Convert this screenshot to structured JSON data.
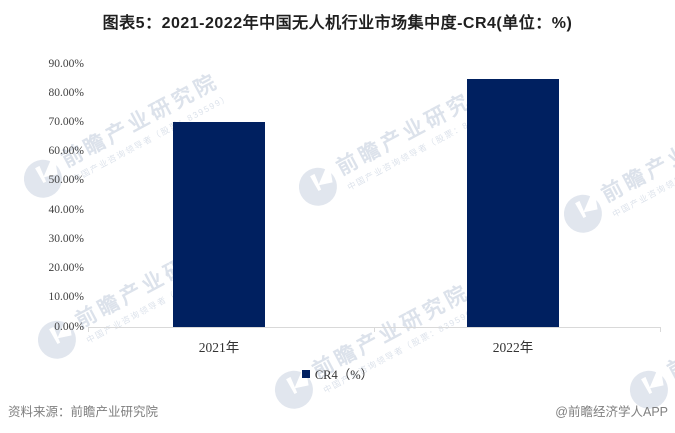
{
  "chart_data": {
    "type": "bar",
    "title": "图表5：2021-2022年中国无人机行业市场集中度-CR4(单位：%)",
    "categories": [
      "2021年",
      "2022年"
    ],
    "series": [
      {
        "name": "CR4（%）",
        "values": [
          70,
          85
        ]
      }
    ],
    "unit": "%",
    "ylim": [
      0,
      90
    ],
    "ytick_labels": [
      "0.00%",
      "10.00%",
      "20.00%",
      "30.00%",
      "40.00%",
      "50.00%",
      "60.00%",
      "70.00%",
      "80.00%",
      "90.00%"
    ],
    "grid": false,
    "legend": {
      "label": "CR4（%）",
      "position": "bottom"
    },
    "bar_color": "#002060",
    "axis_line_color": "#d9d9d9"
  },
  "footer": {
    "source": "资料来源：前瞻产业研究院",
    "credit": "@前瞻经济学人APP"
  },
  "watermark": {
    "big_text": "前瞻产业研究院",
    "small_text": "中国产业咨询领导者（股票：839599）"
  }
}
